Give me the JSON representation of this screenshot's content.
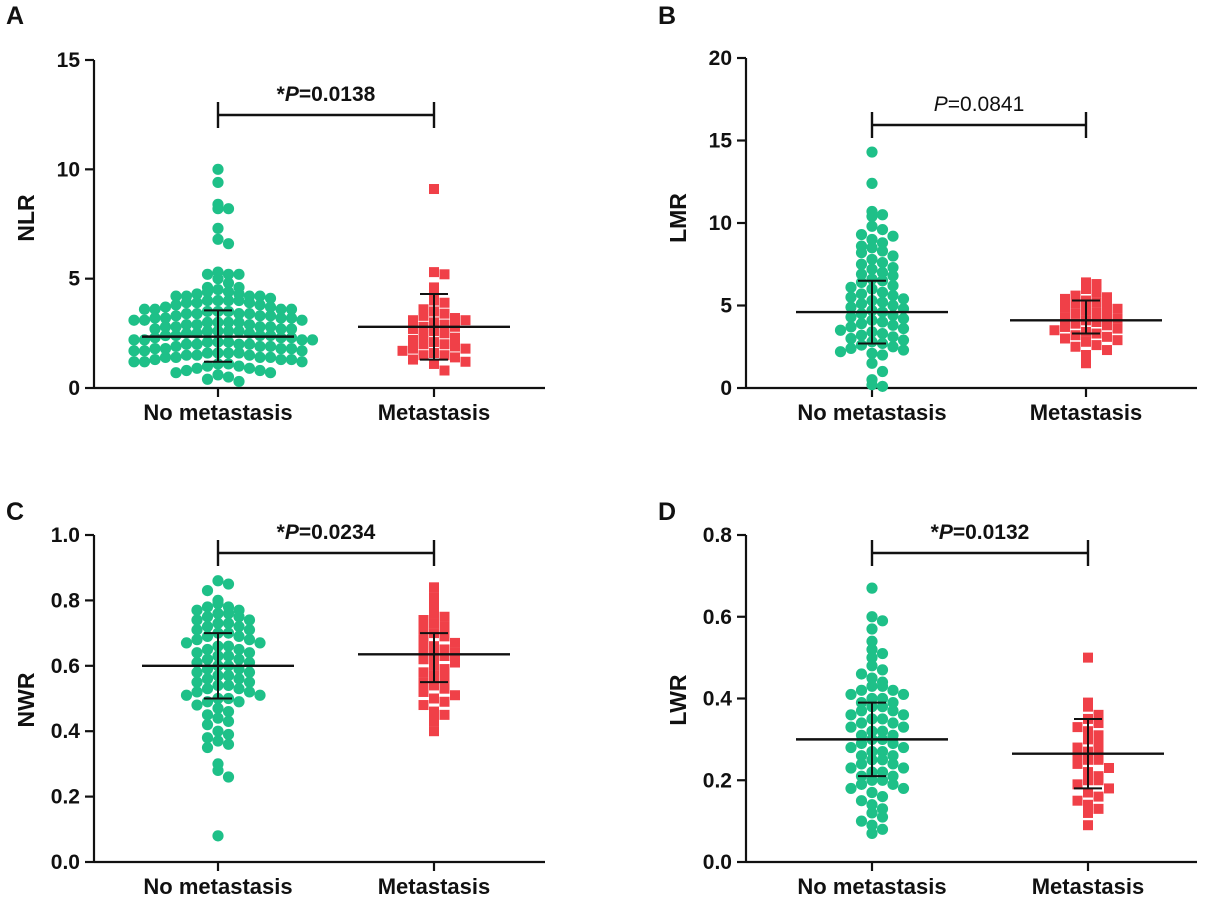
{
  "chart_data": [
    {
      "panel": "A",
      "type": "scatter",
      "ylabel": "NLR",
      "ylim": [
        0,
        15
      ],
      "yticks": [
        "0",
        "5",
        "10",
        "15"
      ],
      "ytick_values": [
        0,
        5,
        10,
        15
      ],
      "categories": [
        "No metastasis",
        "Metastasis"
      ],
      "colors": [
        "#1ec088",
        "#f04048"
      ],
      "markers": [
        "circle",
        "square"
      ],
      "annotation": {
        "prefix": "*",
        "p_italic": "P",
        "rest": "=0.0138",
        "significant": true
      },
      "series": [
        {
          "name": "No metastasis",
          "mean": 2.35,
          "sd_low": 1.2,
          "sd_high": 3.55,
          "values": [
            10.0,
            9.4,
            8.4,
            8.2,
            8.2,
            7.3,
            6.8,
            6.6,
            5.3,
            5.2,
            5.2,
            5.2,
            5.0,
            4.8,
            4.6,
            4.6,
            4.5,
            4.4,
            4.4,
            4.3,
            4.3,
            4.2,
            4.2,
            4.2,
            4.2,
            4.1,
            4.0,
            4.0,
            4.0,
            4.0,
            3.9,
            3.9,
            3.9,
            3.8,
            3.8,
            3.7,
            3.7,
            3.6,
            3.6,
            3.6,
            3.6,
            3.5,
            3.5,
            3.5,
            3.4,
            3.4,
            3.4,
            3.4,
            3.3,
            3.3,
            3.3,
            3.2,
            3.2,
            3.2,
            3.2,
            3.1,
            3.1,
            3.1,
            3.0,
            3.0,
            3.0,
            3.0,
            2.9,
            2.9,
            2.9,
            2.8,
            2.8,
            2.8,
            2.8,
            2.7,
            2.7,
            2.7,
            2.6,
            2.6,
            2.6,
            2.6,
            2.5,
            2.5,
            2.5,
            2.4,
            2.4,
            2.4,
            2.4,
            2.3,
            2.3,
            2.3,
            2.2,
            2.2,
            2.2,
            2.2,
            2.1,
            2.1,
            2.1,
            2.0,
            2.0,
            2.0,
            2.0,
            1.9,
            1.9,
            1.9,
            1.8,
            1.8,
            1.8,
            1.8,
            1.7,
            1.7,
            1.7,
            1.6,
            1.6,
            1.6,
            1.6,
            1.5,
            1.5,
            1.5,
            1.4,
            1.4,
            1.4,
            1.4,
            1.3,
            1.3,
            1.3,
            1.2,
            1.2,
            1.2,
            1.1,
            1.1,
            1.0,
            1.0,
            0.9,
            0.9,
            0.8,
            0.8,
            0.7,
            0.7,
            0.6,
            0.5,
            0.4,
            0.3
          ]
        },
        {
          "name": "Metastasis",
          "mean": 2.8,
          "sd_low": 1.3,
          "sd_high": 4.3,
          "values": [
            9.1,
            5.3,
            5.2,
            4.6,
            4.2,
            4.0,
            3.9,
            3.6,
            3.5,
            3.4,
            3.3,
            3.2,
            3.1,
            3.1,
            3.0,
            2.9,
            2.8,
            2.8,
            2.7,
            2.6,
            2.5,
            2.4,
            2.3,
            2.2,
            2.1,
            2.0,
            2.0,
            1.9,
            1.8,
            1.8,
            1.7,
            1.6,
            1.5,
            1.5,
            1.4,
            1.3,
            1.2,
            1.1,
            0.8
          ]
        }
      ]
    },
    {
      "panel": "B",
      "type": "scatter",
      "ylabel": "LMR",
      "ylim": [
        0,
        20
      ],
      "yticks": [
        "0",
        "5",
        "10",
        "15",
        "20"
      ],
      "ytick_values": [
        0,
        5,
        10,
        15,
        20
      ],
      "categories": [
        "No metastasis",
        "Metastasis"
      ],
      "colors": [
        "#1ec088",
        "#f04048"
      ],
      "markers": [
        "circle",
        "square"
      ],
      "annotation": {
        "prefix": "",
        "p_italic": "P",
        "rest": "=0.0841",
        "significant": false
      },
      "series": [
        {
          "name": "No metastasis",
          "mean": 4.6,
          "sd_low": 2.7,
          "sd_high": 6.5,
          "values": [
            14.3,
            12.4,
            10.7,
            10.5,
            10.4,
            9.8,
            9.6,
            9.3,
            9.2,
            9.0,
            8.8,
            8.6,
            8.5,
            8.3,
            8.2,
            8.0,
            7.8,
            7.6,
            7.5,
            7.3,
            7.2,
            7.0,
            6.9,
            6.8,
            6.6,
            6.5,
            6.4,
            6.2,
            6.1,
            6.0,
            5.8,
            5.7,
            5.6,
            5.5,
            5.4,
            5.3,
            5.2,
            5.1,
            5.0,
            4.9,
            4.8,
            4.7,
            4.6,
            4.5,
            4.4,
            4.3,
            4.2,
            4.1,
            4.0,
            3.9,
            3.8,
            3.7,
            3.6,
            3.5,
            3.4,
            3.3,
            3.2,
            3.1,
            3.0,
            2.9,
            2.8,
            2.7,
            2.6,
            2.5,
            2.4,
            2.3,
            2.2,
            2.1,
            2.0,
            1.5,
            1.0,
            0.5,
            0.2,
            0.1
          ]
        },
        {
          "name": "Metastasis",
          "mean": 4.1,
          "sd_low": 3.3,
          "sd_high": 5.3,
          "values": [
            6.4,
            6.3,
            6.0,
            5.8,
            5.6,
            5.5,
            5.4,
            5.3,
            5.2,
            5.1,
            5.0,
            4.9,
            4.8,
            4.7,
            4.6,
            4.5,
            4.4,
            4.3,
            4.2,
            4.1,
            4.0,
            3.9,
            3.8,
            3.7,
            3.6,
            3.5,
            3.4,
            3.3,
            3.2,
            3.1,
            3.0,
            2.9,
            2.8,
            2.6,
            2.5,
            2.3,
            2.0,
            1.5
          ]
        }
      ]
    },
    {
      "panel": "C",
      "type": "scatter",
      "ylabel": "NWR",
      "ylim": [
        0,
        1.0
      ],
      "yticks": [
        "0.0",
        "0.2",
        "0.4",
        "0.6",
        "0.8",
        "1.0"
      ],
      "ytick_values": [
        0,
        0.2,
        0.4,
        0.6,
        0.8,
        1.0
      ],
      "categories": [
        "No metastasis",
        "Metastasis"
      ],
      "colors": [
        "#1ec088",
        "#f04048"
      ],
      "markers": [
        "circle",
        "square"
      ],
      "annotation": {
        "prefix": "*",
        "p_italic": "P",
        "rest": "=0.0234",
        "significant": true
      },
      "series": [
        {
          "name": "No metastasis",
          "mean": 0.6,
          "sd_low": 0.5,
          "sd_high": 0.7,
          "values": [
            0.86,
            0.85,
            0.83,
            0.8,
            0.79,
            0.78,
            0.78,
            0.77,
            0.77,
            0.76,
            0.76,
            0.75,
            0.75,
            0.74,
            0.74,
            0.73,
            0.73,
            0.72,
            0.72,
            0.71,
            0.71,
            0.7,
            0.7,
            0.69,
            0.69,
            0.68,
            0.68,
            0.67,
            0.67,
            0.66,
            0.66,
            0.65,
            0.65,
            0.64,
            0.64,
            0.63,
            0.63,
            0.62,
            0.62,
            0.61,
            0.61,
            0.6,
            0.6,
            0.59,
            0.59,
            0.58,
            0.58,
            0.57,
            0.57,
            0.56,
            0.56,
            0.55,
            0.55,
            0.54,
            0.54,
            0.53,
            0.53,
            0.52,
            0.52,
            0.51,
            0.51,
            0.5,
            0.5,
            0.49,
            0.49,
            0.48,
            0.47,
            0.46,
            0.45,
            0.44,
            0.43,
            0.42,
            0.4,
            0.39,
            0.38,
            0.37,
            0.36,
            0.35,
            0.3,
            0.28,
            0.26,
            0.08
          ]
        },
        {
          "name": "Metastasis",
          "mean": 0.635,
          "sd_low": 0.55,
          "sd_high": 0.7,
          "values": [
            0.84,
            0.81,
            0.78,
            0.76,
            0.75,
            0.74,
            0.73,
            0.72,
            0.71,
            0.7,
            0.69,
            0.68,
            0.67,
            0.66,
            0.65,
            0.65,
            0.64,
            0.63,
            0.63,
            0.62,
            0.61,
            0.6,
            0.59,
            0.58,
            0.57,
            0.56,
            0.55,
            0.54,
            0.53,
            0.52,
            0.51,
            0.5,
            0.49,
            0.48,
            0.46,
            0.45,
            0.43,
            0.4
          ]
        }
      ]
    },
    {
      "panel": "D",
      "type": "scatter",
      "ylabel": "LWR",
      "ylim": [
        0,
        0.8
      ],
      "yticks": [
        "0.0",
        "0.2",
        "0.4",
        "0.6",
        "0.8"
      ],
      "ytick_values": [
        0,
        0.2,
        0.4,
        0.6,
        0.8
      ],
      "categories": [
        "No metastasis",
        "Metastasis"
      ],
      "colors": [
        "#1ec088",
        "#f04048"
      ],
      "markers": [
        "circle",
        "square"
      ],
      "annotation": {
        "prefix": "*",
        "p_italic": "P",
        "rest": "=0.0132",
        "significant": true
      },
      "series": [
        {
          "name": "No metastasis",
          "mean": 0.3,
          "sd_low": 0.21,
          "sd_high": 0.39,
          "values": [
            0.67,
            0.6,
            0.59,
            0.57,
            0.54,
            0.52,
            0.51,
            0.5,
            0.48,
            0.47,
            0.46,
            0.45,
            0.44,
            0.43,
            0.43,
            0.42,
            0.42,
            0.41,
            0.41,
            0.4,
            0.4,
            0.39,
            0.39,
            0.38,
            0.38,
            0.37,
            0.37,
            0.36,
            0.36,
            0.35,
            0.35,
            0.34,
            0.34,
            0.33,
            0.33,
            0.32,
            0.32,
            0.31,
            0.31,
            0.3,
            0.3,
            0.29,
            0.29,
            0.28,
            0.28,
            0.27,
            0.27,
            0.26,
            0.26,
            0.25,
            0.25,
            0.24,
            0.24,
            0.23,
            0.23,
            0.22,
            0.22,
            0.21,
            0.21,
            0.2,
            0.2,
            0.19,
            0.19,
            0.18,
            0.18,
            0.17,
            0.16,
            0.15,
            0.14,
            0.13,
            0.12,
            0.11,
            0.1,
            0.09,
            0.08,
            0.07
          ]
        },
        {
          "name": "Metastasis",
          "mean": 0.265,
          "sd_low": 0.18,
          "sd_high": 0.35,
          "values": [
            0.5,
            0.39,
            0.38,
            0.36,
            0.35,
            0.34,
            0.33,
            0.32,
            0.31,
            0.3,
            0.29,
            0.28,
            0.27,
            0.27,
            0.26,
            0.25,
            0.25,
            0.24,
            0.23,
            0.22,
            0.21,
            0.2,
            0.2,
            0.19,
            0.18,
            0.17,
            0.16,
            0.15,
            0.14,
            0.13,
            0.12,
            0.09
          ]
        }
      ]
    }
  ]
}
